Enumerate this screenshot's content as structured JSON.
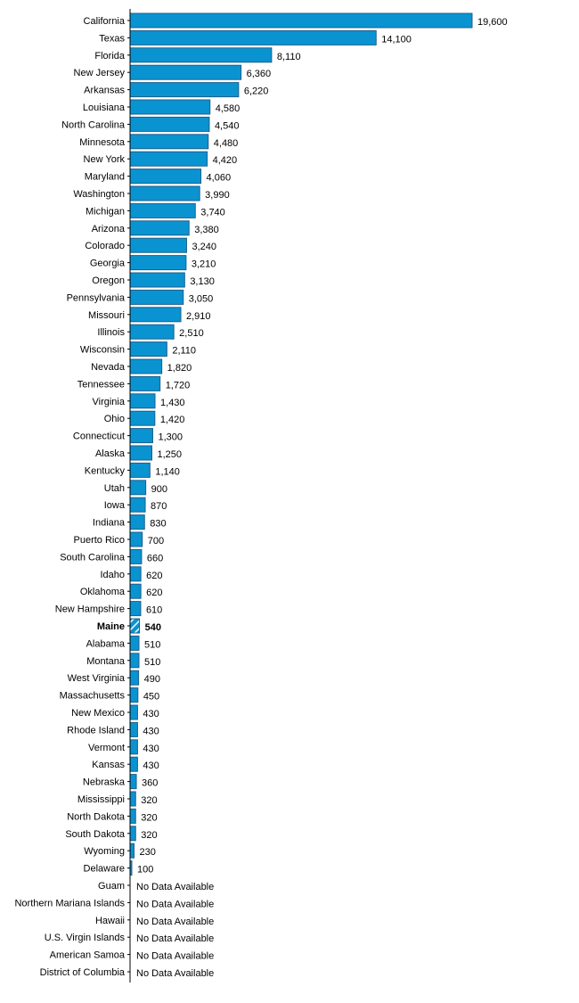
{
  "chart_data": {
    "type": "bar",
    "orientation": "horizontal",
    "colors": {
      "bar": "#0a93d1",
      "bar_border": "#1d5f8a",
      "axis": "#000000",
      "hatch": "#ffffff"
    },
    "no_data_text": "No Data Available",
    "highlight_category": "Maine",
    "grid": false,
    "legend": "none",
    "xlim": [
      0,
      19600
    ],
    "categories": [
      "California",
      "Texas",
      "Florida",
      "New Jersey",
      "Arkansas",
      "Louisiana",
      "North Carolina",
      "Minnesota",
      "New York",
      "Maryland",
      "Washington",
      "Michigan",
      "Arizona",
      "Colorado",
      "Georgia",
      "Oregon",
      "Pennsylvania",
      "Missouri",
      "Illinois",
      "Wisconsin",
      "Nevada",
      "Tennessee",
      "Virginia",
      "Ohio",
      "Connecticut",
      "Alaska",
      "Kentucky",
      "Utah",
      "Iowa",
      "Indiana",
      "Puerto Rico",
      "South Carolina",
      "Idaho",
      "Oklahoma",
      "New Hampshire",
      "Maine",
      "Alabama",
      "Montana",
      "West Virginia",
      "Massachusetts",
      "New Mexico",
      "Rhode Island",
      "Vermont",
      "Kansas",
      "Nebraska",
      "Mississippi",
      "North Dakota",
      "South Dakota",
      "Wyoming",
      "Delaware",
      "Guam",
      "Northern Mariana Islands",
      "Hawaii",
      "U.S. Virgin Islands",
      "American Samoa",
      "District of Columbia"
    ],
    "values": [
      19600,
      14100,
      8110,
      6360,
      6220,
      4580,
      4540,
      4480,
      4420,
      4060,
      3990,
      3740,
      3380,
      3240,
      3210,
      3130,
      3050,
      2910,
      2510,
      2110,
      1820,
      1720,
      1430,
      1420,
      1300,
      1250,
      1140,
      900,
      870,
      830,
      700,
      660,
      620,
      620,
      610,
      540,
      510,
      510,
      490,
      450,
      430,
      430,
      430,
      430,
      360,
      320,
      320,
      320,
      230,
      100,
      null,
      null,
      null,
      null,
      null,
      null
    ],
    "value_labels": [
      "19,600",
      "14,100",
      "8,110",
      "6,360",
      "6,220",
      "4,580",
      "4,540",
      "4,480",
      "4,420",
      "4,060",
      "3,990",
      "3,740",
      "3,380",
      "3,240",
      "3,210",
      "3,130",
      "3,050",
      "2,910",
      "2,510",
      "2,110",
      "1,820",
      "1,720",
      "1,430",
      "1,420",
      "1,300",
      "1,250",
      "1,140",
      "900",
      "870",
      "830",
      "700",
      "660",
      "620",
      "620",
      "610",
      "540",
      "510",
      "510",
      "490",
      "450",
      "430",
      "430",
      "430",
      "430",
      "360",
      "320",
      "320",
      "320",
      "230",
      "100",
      "No Data Available",
      "No Data Available",
      "No Data Available",
      "No Data Available",
      "No Data Available",
      "No Data Available"
    ]
  }
}
